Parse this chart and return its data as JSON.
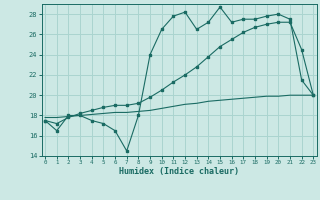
{
  "title": "",
  "xlabel": "Humidex (Indice chaleur)",
  "ylabel": "",
  "bg_color": "#cce8e4",
  "line_color": "#1a6b63",
  "grid_color": "#aad4cf",
  "x": [
    0,
    1,
    2,
    3,
    4,
    5,
    6,
    7,
    8,
    9,
    10,
    11,
    12,
    13,
    14,
    15,
    16,
    17,
    18,
    19,
    20,
    21,
    22,
    23
  ],
  "y_jagged": [
    17.5,
    16.5,
    18.0,
    18.0,
    17.5,
    17.2,
    16.5,
    14.5,
    18.0,
    24.0,
    26.5,
    27.8,
    28.2,
    26.5,
    27.2,
    28.7,
    27.2,
    27.5,
    27.5,
    27.8,
    28.0,
    27.5,
    21.5,
    20.0
  ],
  "y_diagonal": [
    17.5,
    17.2,
    17.8,
    18.2,
    18.5,
    18.8,
    19.0,
    19.0,
    19.2,
    19.8,
    20.5,
    21.3,
    22.0,
    22.8,
    23.8,
    24.8,
    25.5,
    26.2,
    26.7,
    27.0,
    27.2,
    27.2,
    24.5,
    20.0
  ],
  "y_flat": [
    17.8,
    17.8,
    17.9,
    18.0,
    18.1,
    18.2,
    18.3,
    18.3,
    18.4,
    18.5,
    18.7,
    18.9,
    19.1,
    19.2,
    19.4,
    19.5,
    19.6,
    19.7,
    19.8,
    19.9,
    19.9,
    20.0,
    20.0,
    20.0
  ],
  "ylim": [
    14,
    29
  ],
  "xlim": [
    -0.3,
    23.3
  ],
  "yticks": [
    14,
    16,
    18,
    20,
    22,
    24,
    26,
    28
  ],
  "xticks": [
    0,
    1,
    2,
    3,
    4,
    5,
    6,
    7,
    8,
    9,
    10,
    11,
    12,
    13,
    14,
    15,
    16,
    17,
    18,
    19,
    20,
    21,
    22,
    23
  ]
}
